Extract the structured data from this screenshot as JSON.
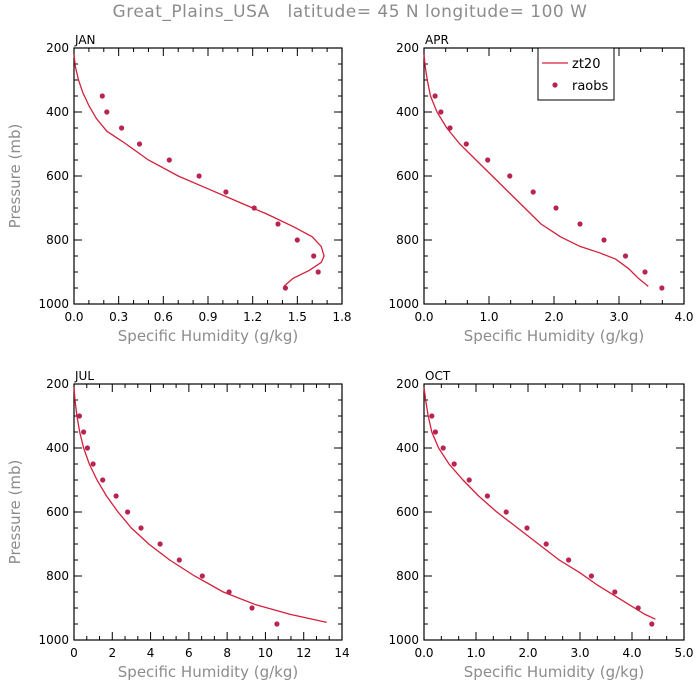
{
  "figure": {
    "title": "Great_Plains_USA   latitude= 45 N longitude= 100 W"
  },
  "colors": {
    "model_line": "#d3203a",
    "obs_point": "#b8244f"
  },
  "chart_data": [
    {
      "type": "line",
      "panel_label": "JAN",
      "xlabel": "Specific Humidity (g/kg)",
      "ylabel": "Pressure (mb)",
      "xlim": [
        0,
        1.8
      ],
      "xticks": [
        0.0,
        0.3,
        0.6,
        0.9,
        1.2,
        1.5,
        1.8
      ],
      "xtick_labels": [
        "0.0",
        "0.3",
        "0.6",
        "0.9",
        "1.2",
        "1.5",
        "1.8"
      ],
      "ylim": [
        200,
        1000
      ],
      "yreversed": true,
      "yticks": [
        200,
        400,
        600,
        800,
        1000
      ],
      "ytick_labels": [
        "200",
        "400",
        "600",
        "800",
        "1000"
      ],
      "legend": null,
      "series": [
        {
          "name": "zt20",
          "kind": "line",
          "x": [
            0.0,
            0.01,
            0.03,
            0.06,
            0.1,
            0.15,
            0.22,
            0.35,
            0.5,
            0.7,
            0.9,
            1.1,
            1.3,
            1.48,
            1.6,
            1.66,
            1.68,
            1.66,
            1.58,
            1.47,
            1.41
          ],
          "y": [
            220,
            260,
            300,
            340,
            380,
            420,
            460,
            500,
            550,
            600,
            640,
            680,
            720,
            760,
            790,
            820,
            850,
            870,
            895,
            920,
            945
          ]
        },
        {
          "name": "raobs",
          "kind": "scatter",
          "x": [
            0.19,
            0.22,
            0.32,
            0.44,
            0.64,
            0.84,
            1.02,
            1.21,
            1.37,
            1.5,
            1.61,
            1.64,
            1.42
          ],
          "y": [
            350,
            400,
            450,
            500,
            550,
            600,
            650,
            700,
            750,
            800,
            850,
            900,
            950
          ]
        }
      ]
    },
    {
      "type": "line",
      "panel_label": "APR",
      "xlabel": "Specific Humidity (g/kg)",
      "ylabel": "",
      "xlim": [
        0,
        4.0
      ],
      "xticks": [
        0.0,
        1.0,
        2.0,
        3.0,
        4.0
      ],
      "xtick_labels": [
        "0.0",
        "1.0",
        "2.0",
        "3.0",
        "4.0"
      ],
      "ylim": [
        200,
        1000
      ],
      "yreversed": true,
      "yticks": [
        200,
        400,
        600,
        800,
        1000
      ],
      "ytick_labels": [
        "200",
        "400",
        "600",
        "800",
        "1000"
      ],
      "legend": {
        "position": "top-right",
        "entries": [
          "zt20",
          "raobs"
        ]
      },
      "series": [
        {
          "name": "zt20",
          "kind": "line",
          "x": [
            0.0,
            0.02,
            0.05,
            0.1,
            0.2,
            0.35,
            0.55,
            0.8,
            1.05,
            1.3,
            1.55,
            1.8,
            2.1,
            2.4,
            2.7,
            2.95,
            3.15,
            3.3,
            3.45
          ],
          "y": [
            220,
            260,
            300,
            350,
            400,
            450,
            500,
            550,
            600,
            650,
            700,
            750,
            790,
            820,
            840,
            860,
            890,
            920,
            945
          ]
        },
        {
          "name": "raobs",
          "kind": "scatter",
          "x": [
            0.17,
            0.26,
            0.4,
            0.65,
            0.98,
            1.32,
            1.68,
            2.03,
            2.4,
            2.77,
            3.1,
            3.4,
            3.66
          ],
          "y": [
            350,
            400,
            450,
            500,
            550,
            600,
            650,
            700,
            750,
            800,
            850,
            900,
            950
          ]
        }
      ]
    },
    {
      "type": "line",
      "panel_label": "JUL",
      "xlabel": "Specific Humidity (g/kg)",
      "ylabel": "Pressure (mb)",
      "xlim": [
        0,
        14
      ],
      "xticks": [
        0,
        2,
        4,
        6,
        8,
        10,
        12,
        14
      ],
      "xtick_labels": [
        "0",
        "2",
        "4",
        "6",
        "8",
        "10",
        "12",
        "14"
      ],
      "ylim": [
        200,
        1000
      ],
      "yreversed": true,
      "yticks": [
        200,
        400,
        600,
        800,
        1000
      ],
      "ytick_labels": [
        "200",
        "400",
        "600",
        "800",
        "1000"
      ],
      "legend": null,
      "series": [
        {
          "name": "zt20",
          "kind": "line",
          "x": [
            0.0,
            0.05,
            0.15,
            0.3,
            0.5,
            0.8,
            1.2,
            1.7,
            2.3,
            3.0,
            3.9,
            5.0,
            6.3,
            7.8,
            9.5,
            11.3,
            13.2
          ],
          "y": [
            210,
            250,
            300,
            350,
            400,
            450,
            500,
            550,
            600,
            650,
            700,
            750,
            800,
            850,
            890,
            920,
            945
          ]
        },
        {
          "name": "raobs",
          "kind": "scatter",
          "x": [
            0.28,
            0.5,
            0.7,
            1.0,
            1.5,
            2.2,
            2.8,
            3.5,
            4.5,
            5.5,
            6.7,
            8.1,
            9.3,
            10.6
          ],
          "y": [
            300,
            350,
            400,
            450,
            500,
            550,
            600,
            650,
            700,
            750,
            800,
            850,
            900,
            950
          ]
        }
      ]
    },
    {
      "type": "line",
      "panel_label": "OCT",
      "xlabel": "Specific Humidity (g/kg)",
      "ylabel": "",
      "xlim": [
        0,
        5.0
      ],
      "xticks": [
        0.0,
        1.0,
        2.0,
        3.0,
        4.0,
        5.0
      ],
      "xtick_labels": [
        "0.0",
        "1.0",
        "2.0",
        "3.0",
        "4.0",
        "5.0"
      ],
      "ylim": [
        200,
        1000
      ],
      "yreversed": true,
      "yticks": [
        200,
        400,
        600,
        800,
        1000
      ],
      "ytick_labels": [
        "200",
        "400",
        "600",
        "800",
        "1000"
      ],
      "legend": null,
      "series": [
        {
          "name": "zt20",
          "kind": "line",
          "x": [
            0.0,
            0.03,
            0.08,
            0.15,
            0.28,
            0.48,
            0.75,
            1.05,
            1.4,
            1.8,
            2.2,
            2.6,
            3.0,
            3.35,
            3.65,
            3.95,
            4.25,
            4.45
          ],
          "y": [
            210,
            250,
            300,
            350,
            400,
            450,
            500,
            550,
            600,
            650,
            700,
            750,
            790,
            830,
            860,
            890,
            920,
            935
          ]
        },
        {
          "name": "raobs",
          "kind": "scatter",
          "x": [
            0.15,
            0.22,
            0.37,
            0.58,
            0.87,
            1.22,
            1.58,
            1.98,
            2.35,
            2.78,
            3.22,
            3.67,
            4.12,
            4.38
          ],
          "y": [
            300,
            350,
            400,
            450,
            500,
            550,
            600,
            650,
            700,
            750,
            800,
            850,
            900,
            950
          ]
        }
      ]
    }
  ]
}
